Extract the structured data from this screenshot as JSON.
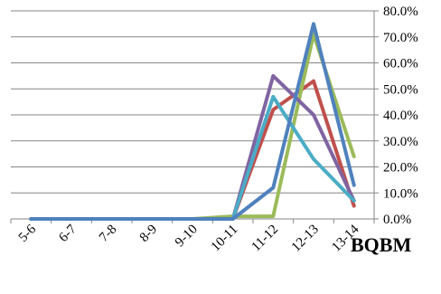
{
  "chart_data": {
    "type": "line",
    "title": "BQBM",
    "xlabel": "",
    "ylabel": "",
    "categories": [
      "5-6",
      "6-7",
      "7-8",
      "8-9",
      "9-10",
      "10-11",
      "11-12",
      "12-13",
      "13-14"
    ],
    "ylim": [
      0,
      0.8
    ],
    "yticks": [
      "0.0%",
      "10.0%",
      "20.0%",
      "30.0%",
      "40.0%",
      "50.0%",
      "60.0%",
      "70.0%",
      "80.0%"
    ],
    "grid": true,
    "legend": "none",
    "series": [
      {
        "color": "#C0504D",
        "values": [
          0,
          0,
          0,
          0,
          0,
          0,
          0.42,
          0.53,
          0.05
        ]
      },
      {
        "color": "#9BBB59",
        "values": [
          0,
          0,
          0,
          0,
          0,
          0.01,
          0.01,
          0.71,
          0.24
        ]
      },
      {
        "color": "#8064A2",
        "values": [
          0,
          0,
          0,
          0,
          0,
          0,
          0.55,
          0.4,
          0.07
        ]
      },
      {
        "color": "#4BACC6",
        "values": [
          0,
          0,
          0,
          0,
          0,
          0,
          0.47,
          0.23,
          0.07
        ]
      },
      {
        "color": "#4F81BD",
        "values": [
          0,
          0,
          0,
          0,
          0,
          0,
          0.12,
          0.75,
          0.13
        ]
      }
    ]
  }
}
